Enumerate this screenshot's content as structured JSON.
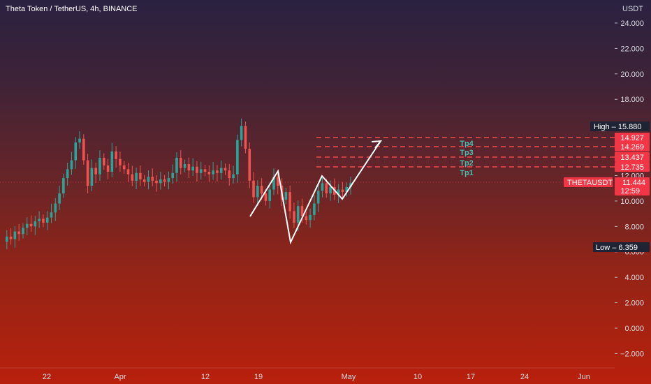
{
  "header": {
    "title": "Theta Token / TetherUS, 4h, BINANCE",
    "currency": "USDT"
  },
  "chart_data": {
    "type": "candlestick",
    "symbol": "THETAUSDT",
    "timeframe": "4h",
    "exchange": "BINANCE",
    "y_ticks": [
      "24.000",
      "22.000",
      "20.000",
      "18.000",
      "12.000",
      "10.000",
      "8.000",
      "6.000",
      "4.000",
      "2.000",
      "0.000",
      "−2.000"
    ],
    "x_ticks": [
      "22",
      "Apr",
      "12",
      "19",
      "May",
      "10",
      "17",
      "24",
      "Jun"
    ],
    "ylim": [
      -3,
      25
    ],
    "price_series": [
      6.8,
      7.2,
      7.0,
      7.6,
      7.4,
      7.9,
      8.2,
      8.0,
      8.4,
      8.6,
      8.3,
      8.7,
      9.1,
      9.8,
      10.6,
      11.8,
      12.5,
      13.2,
      14.6,
      14.9,
      13.2,
      11.2,
      12.6,
      12.1,
      13.4,
      12.8,
      12.3,
      13.9,
      13.3,
      12.8,
      12.5,
      12.1,
      11.6,
      12.2,
      11.7,
      11.5,
      11.9,
      11.6,
      11.4,
      11.7,
      11.5,
      11.8,
      12.2,
      13.4,
      12.6,
      12.9,
      12.4,
      12.7,
      12.2,
      12.5,
      12.3,
      12.1,
      12.4,
      12.2,
      12.6,
      12.4,
      11.8,
      12.1,
      14.8,
      15.9,
      14.1,
      11.6,
      10.3,
      11.2,
      10.6,
      10.0,
      10.9,
      11.9,
      11.2,
      10.1,
      10.7,
      9.2,
      8.3,
      9.6,
      8.8,
      8.5,
      8.9,
      9.8,
      10.8,
      11.4,
      10.6,
      11.1,
      10.5,
      10.9,
      10.7,
      11.1,
      11.4
    ],
    "annotations": {
      "projection_path": [
        {
          "date": "Apr 17",
          "price": 8.7
        },
        {
          "date": "Apr 21",
          "price": 12.3
        },
        {
          "date": "Apr 24",
          "price": 6.8
        },
        {
          "date": "Apr 28",
          "price": 11.9
        },
        {
          "date": "May 1",
          "price": 10.1
        },
        {
          "date": "May 4",
          "price": 14.8
        }
      ],
      "targets": [
        {
          "label": "Tp1",
          "price_label": "12.735",
          "value": 12.735
        },
        {
          "label": "Tp2",
          "price_label": "13.437",
          "value": 13.437
        },
        {
          "label": "Tp3",
          "price_label": "14.269",
          "value": 14.269
        },
        {
          "label": "Tp4",
          "price_label": "14.927",
          "value": 14.927
        }
      ],
      "high": {
        "label": "High",
        "value_label": "15.880",
        "value": 15.88
      },
      "low": {
        "label": "Low",
        "value_label": "6.359",
        "value": 6.359
      },
      "last_price": {
        "symbol": "THETAUSDT",
        "value_label": "11.444",
        "value": 11.444,
        "countdown": "12:59"
      }
    }
  },
  "colors": {
    "up": "#26a69a",
    "down": "#ef5350",
    "target_line": "#f24a4a",
    "tp_text": "#48c0b0",
    "price_tag": "#f23645",
    "tag_dark": "#1e2433"
  }
}
